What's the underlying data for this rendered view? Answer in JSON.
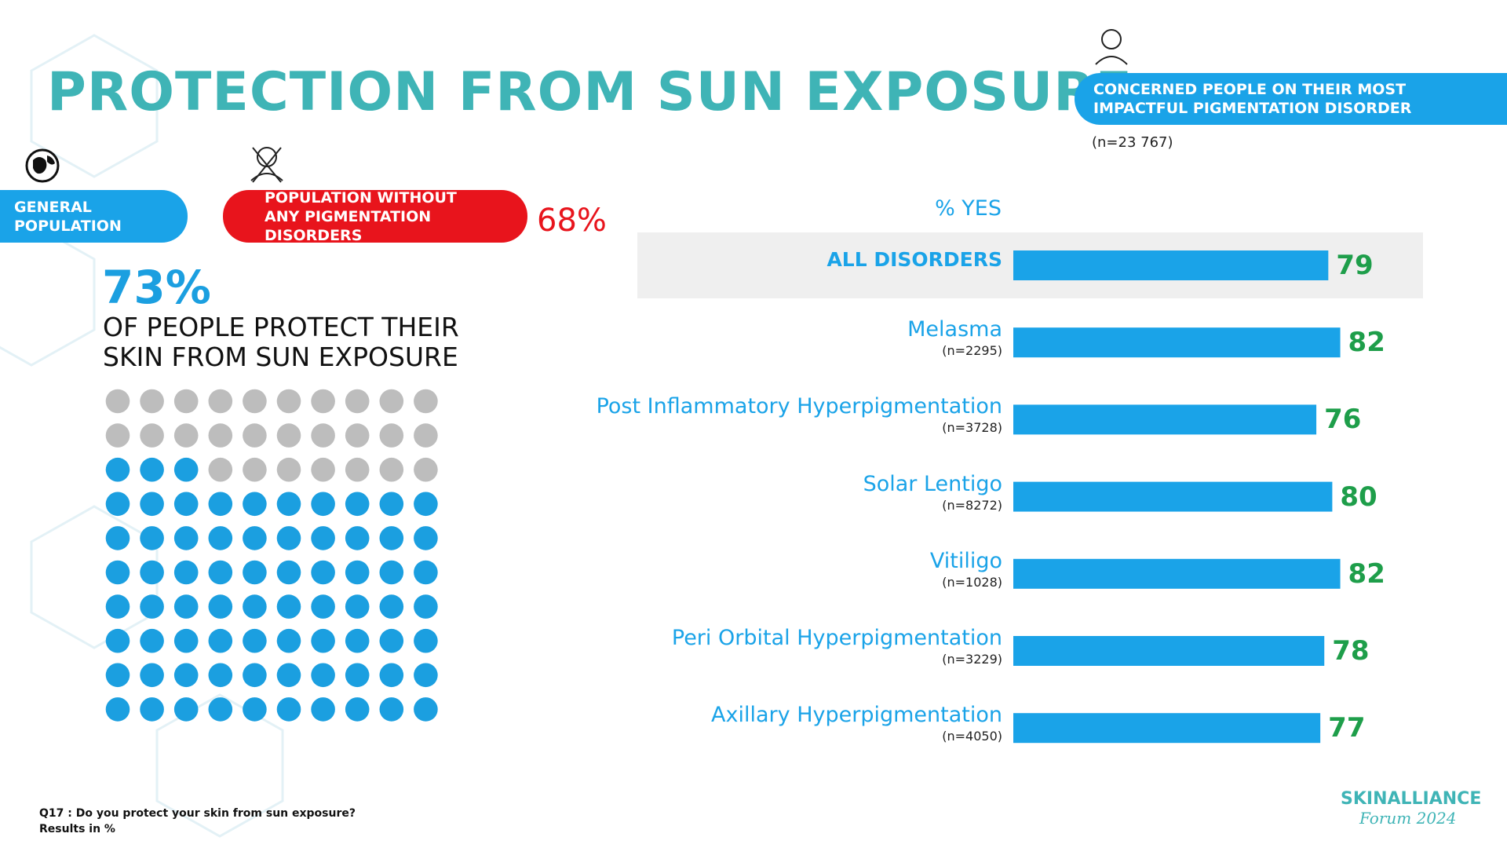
{
  "title": "PROTECTION FROM SUN EXPOSURE",
  "header_right": {
    "label": "CONCERNED PEOPLE ON THEIR MOST IMPACTFUL PIGMENTATION DISORDER",
    "n": "(n=23 767)"
  },
  "general_population": "GENERAL POPULATION",
  "population_without": {
    "label": "POPULATION WITHOUT ANY PIGMENTATION DISORDERS",
    "value": 68,
    "value_label": "68%",
    "color": "#e8141c"
  },
  "chart_data": [
    {
      "type": "waffle",
      "value": 73,
      "value_label": "73%",
      "caption": "OF PEOPLE PROTECT THEIR SKIN FROM SUN EXPOSURE",
      "color": "#1b9fe0",
      "empty_color": "#bdbdbd"
    },
    {
      "type": "bar",
      "axis_label": "% YES",
      "categories": [
        "ALL DISORDERS",
        "Melasma",
        "Post Inflammatory Hyperpigmentation",
        "Solar Lentigo",
        "Vitiligo",
        "Peri Orbital Hyperpigmentation",
        "Axillary Hyperpigmentation"
      ],
      "subtitles": [
        null,
        "(n=2295)",
        "(n=3728)",
        "(n=8272)",
        "(n=1028)",
        "(n=3229)",
        "(n=4050)"
      ],
      "values": [
        79,
        82,
        76,
        80,
        82,
        78,
        77
      ],
      "xlim": [
        0,
        100
      ],
      "color": "#1aa3e8",
      "value_color": "#1e9e4a"
    }
  ],
  "footnote": {
    "question": "Q17 : Do you protect your skin from sun exposure?",
    "note": "Results in %"
  },
  "logo": {
    "name": "SKINALLIANCE",
    "sub": "Forum 2024"
  }
}
